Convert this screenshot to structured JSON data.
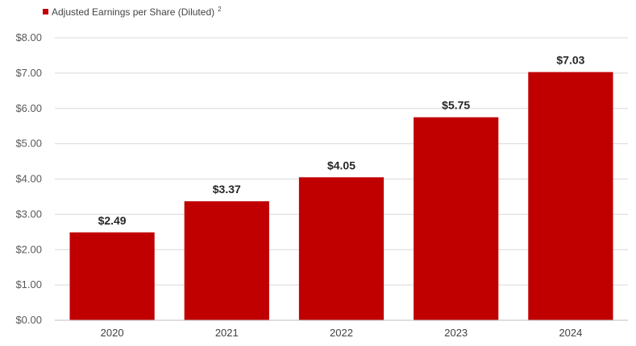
{
  "chart_data": {
    "type": "bar",
    "legend": {
      "label": "Adjusted Earnings per Share (Diluted)",
      "superscript": "2",
      "position": "top-left"
    },
    "categories": [
      "2020",
      "2021",
      "2022",
      "2023",
      "2024"
    ],
    "series": [
      {
        "name": "Adjusted Earnings per Share (Diluted)",
        "values": [
          2.49,
          3.37,
          4.05,
          5.75,
          7.03
        ]
      }
    ],
    "data_labels": [
      "$2.49",
      "$3.37",
      "$4.05",
      "$5.75",
      "$7.03"
    ],
    "y_ticks": [
      "$0.00",
      "$1.00",
      "$2.00",
      "$3.00",
      "$4.00",
      "$5.00",
      "$6.00",
      "$7.00",
      "$8.00"
    ],
    "ylim": [
      0,
      8
    ],
    "grid": true,
    "title": "",
    "xlabel": "",
    "ylabel": "",
    "colors": {
      "bar": "#c00000"
    }
  }
}
